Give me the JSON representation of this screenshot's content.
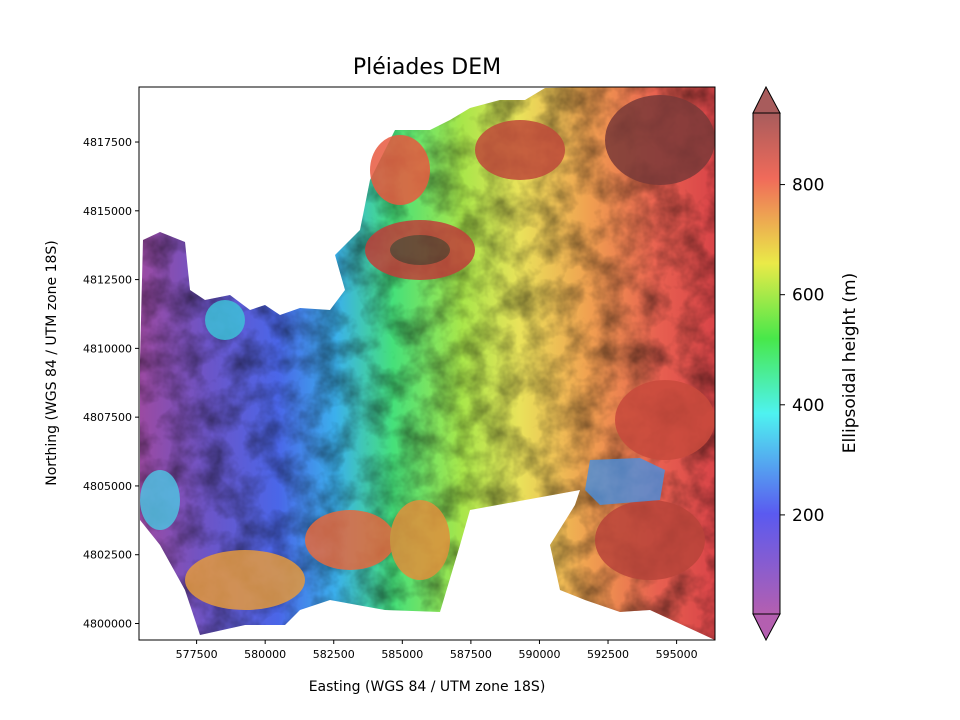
{
  "chart_data": {
    "type": "heatmap",
    "title": "Pléiades DEM",
    "xlabel": "Easting (WGS 84 / UTM zone 18S)",
    "ylabel": "Northing (WGS 84 / UTM zone 18S)",
    "xlim": [
      575400,
      596400
    ],
    "ylim": [
      4799400,
      4819500
    ],
    "x_ticks": [
      577500,
      580000,
      582500,
      585000,
      587500,
      590000,
      592500,
      595000
    ],
    "y_ticks": [
      4800000,
      4802500,
      4805000,
      4807500,
      4810000,
      4812500,
      4815000,
      4817500
    ],
    "colorbar": {
      "label": "Ellipsoidal height (m)",
      "range": [
        20,
        930
      ],
      "ticks": [
        200,
        400,
        600,
        800
      ],
      "extend": "both",
      "colormap": "rainbow"
    }
  }
}
